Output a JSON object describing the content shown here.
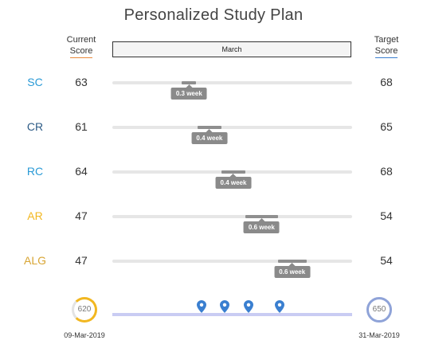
{
  "title": "Personalized Study Plan",
  "current_header": [
    "Current",
    "Score"
  ],
  "target_header": [
    "Target",
    "Score"
  ],
  "month_label": "March",
  "colors": {
    "label_blue": "#2a9ad6",
    "label_darkblue": "#2d5b86",
    "label_yellow": "#f2b720",
    "label_gold": "#d8a534",
    "underline_current": "#e98a3c",
    "underline_target": "#3a7fd0",
    "pin": "#3a7fd0",
    "start_ring": "#f2b720",
    "end_ring": "#8fa3d8"
  },
  "rows": [
    {
      "label": "SC",
      "current": "63",
      "target": "68",
      "duration": "0.3 week",
      "color": "#2a9ad6",
      "start": 0.29,
      "end": 0.35
    },
    {
      "label": "CR",
      "current": "61",
      "target": "65",
      "duration": "0.4 week",
      "color": "#2d5b86",
      "start": 0.355,
      "end": 0.455
    },
    {
      "label": "RC",
      "current": "64",
      "target": "68",
      "duration": "0.4 week",
      "color": "#2a9ad6",
      "start": 0.455,
      "end": 0.555
    },
    {
      "label": "AR",
      "current": "47",
      "target": "54",
      "duration": "0.6 week",
      "color": "#f2b720",
      "start": 0.555,
      "end": 0.69
    },
    {
      "label": "ALG",
      "current": "47",
      "target": "54",
      "duration": "0.6 week",
      "color": "#d8a534",
      "start": 0.69,
      "end": 0.81
    }
  ],
  "start": {
    "score": "620",
    "date": "09-Mar-2019"
  },
  "end": {
    "score": "650",
    "date": "31-Mar-2019"
  },
  "milestones": [
    0.372,
    0.47,
    0.567,
    0.697
  ]
}
